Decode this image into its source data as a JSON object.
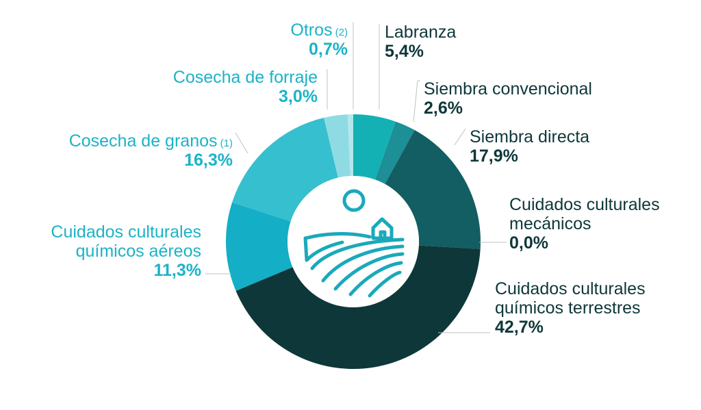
{
  "chart_data": {
    "type": "pie",
    "variant": "donut",
    "slices": [
      {
        "name_lines": [
          "Labranza"
        ],
        "note": "",
        "value": 5.4,
        "value_label": "5,4%",
        "color": "#13b1b3"
      },
      {
        "name_lines": [
          "Siembra convencional"
        ],
        "note": "",
        "value": 2.6,
        "value_label": "2,6%",
        "color": "#1d8f96"
      },
      {
        "name_lines": [
          "Siembra directa"
        ],
        "note": "",
        "value": 17.9,
        "value_label": "17,9%",
        "color": "#135e62"
      },
      {
        "name_lines": [
          "Cuidados culturales",
          "mecánicos"
        ],
        "note": "",
        "value": 0.0,
        "value_label": "0,0%",
        "color": "#104a4c"
      },
      {
        "name_lines": [
          "Cuidados culturales",
          "químicos terrestres"
        ],
        "note": "",
        "value": 42.7,
        "value_label": "42,7%",
        "color": "#0e3739"
      },
      {
        "name_lines": [
          "Cuidados culturales",
          "químicos aéreos"
        ],
        "note": "",
        "value": 11.3,
        "value_label": "11,3%",
        "color": "#14aec6"
      },
      {
        "name_lines": [
          "Cosecha de granos"
        ],
        "note": "(1)",
        "value": 16.3,
        "value_label": "16,3%",
        "color": "#36bfcf"
      },
      {
        "name_lines": [
          "Cosecha de forraje"
        ],
        "note": "",
        "value": 3.0,
        "value_label": "3,0%",
        "color": "#8fdbe4"
      },
      {
        "name_lines": [
          "Otros"
        ],
        "note": "(2)",
        "value": 0.7,
        "value_label": "0,7%",
        "color": "#b4e7ec"
      }
    ],
    "center_icon": "farm-field-icon",
    "label_colors": {
      "right_dark": "#0e3739",
      "left_light": "#1bb3c6"
    }
  }
}
